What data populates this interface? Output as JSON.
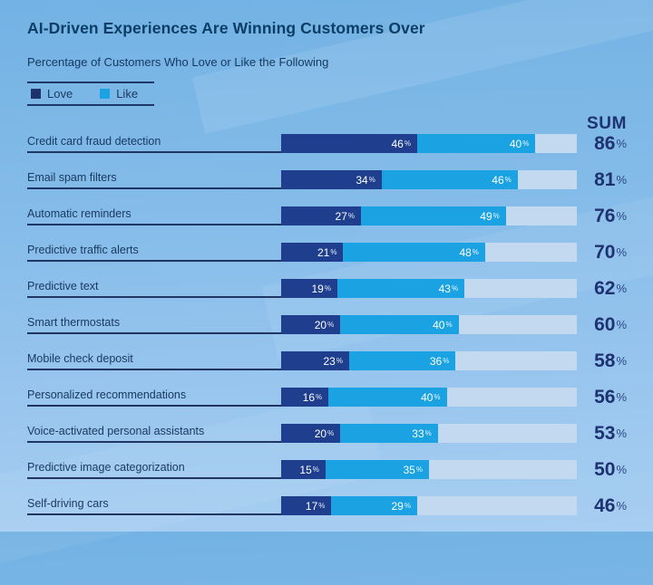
{
  "title": "AI-Driven Experiences Are Winning Customers Over",
  "subtitle": "Percentage of Customers Who Love or Like the Following",
  "legend": {
    "love_label": "Love",
    "like_label": "Like"
  },
  "sum_header": "SUM",
  "colors": {
    "love": "#1f3f8e",
    "like": "#1aa2e2",
    "remainder": "#c3d9f0",
    "navy_text": "#1e3272",
    "background_top": "#72b2e4",
    "background_bottom": "#a8cef1"
  },
  "chart_data": {
    "type": "bar",
    "orientation": "horizontal",
    "stacked": true,
    "xlim": [
      0,
      100
    ],
    "value_suffix": "%",
    "legend_position": "top-left",
    "categories": [
      "Credit card fraud detection",
      "Email spam filters",
      "Automatic reminders",
      "Predictive traffic alerts",
      "Predictive text",
      "Smart thermostats",
      "Mobile check deposit",
      "Personalized recommendations",
      "Voice-activated personal assistants",
      "Predictive image categorization",
      "Self-driving cars"
    ],
    "series": [
      {
        "name": "Love",
        "values": [
          46,
          34,
          27,
          21,
          19,
          20,
          23,
          16,
          20,
          15,
          17
        ]
      },
      {
        "name": "Like",
        "values": [
          40,
          46,
          49,
          48,
          43,
          40,
          36,
          40,
          33,
          35,
          29
        ]
      }
    ],
    "sums": [
      86,
      81,
      76,
      70,
      62,
      60,
      58,
      56,
      53,
      50,
      46
    ]
  }
}
